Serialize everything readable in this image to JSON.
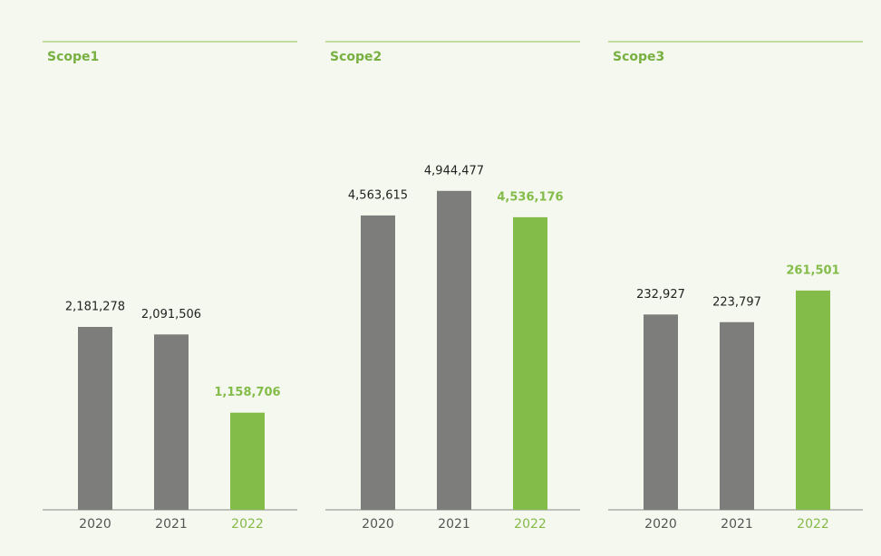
{
  "chart_data": [
    {
      "type": "bar",
      "title": "Scope1",
      "categories": [
        "2020",
        "2021",
        "2022"
      ],
      "values": [
        2181278,
        2091506,
        1158706
      ],
      "value_labels": [
        "2,181,278",
        "2,091,506",
        "1,158,706"
      ],
      "colors": [
        "#7d7d7b",
        "#7d7d7b",
        "#84bc4a"
      ],
      "ylim": [
        0,
        5000000
      ]
    },
    {
      "type": "bar",
      "title": "Scope2",
      "categories": [
        "2020",
        "2021",
        "2022"
      ],
      "values": [
        4563615,
        4944477,
        4536176
      ],
      "value_labels": [
        "4,563,615",
        "4,944,477",
        "4,536,176"
      ],
      "colors": [
        "#7d7d7b",
        "#7d7d7b",
        "#84bc4a"
      ],
      "ylim": [
        0,
        6500000
      ]
    },
    {
      "type": "bar",
      "title": "Scope3",
      "categories": [
        "2020",
        "2021",
        "2022"
      ],
      "values": [
        232927,
        223797,
        261501
      ],
      "value_labels": [
        "232,927",
        "223,797",
        "261,501"
      ],
      "colors": [
        "#7d7d7b",
        "#7d7d7b",
        "#84bc4a"
      ],
      "ylim": [
        0,
        500000
      ]
    }
  ]
}
